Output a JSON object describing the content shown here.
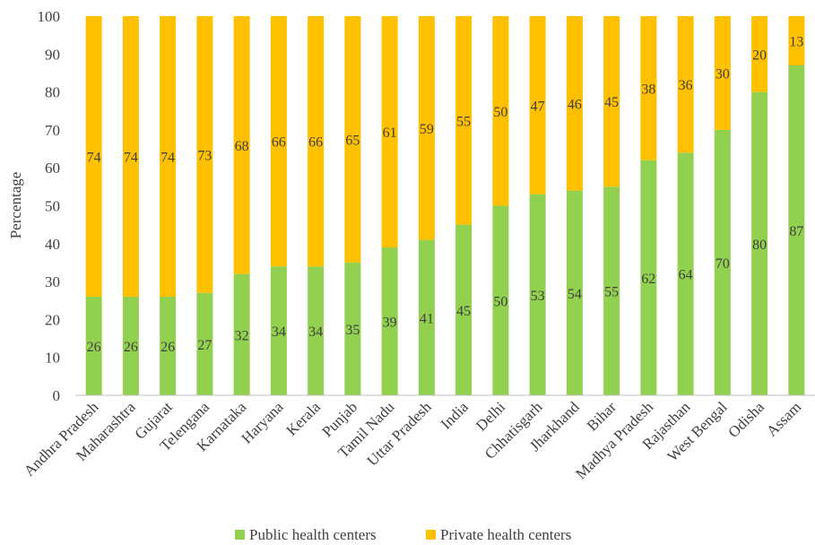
{
  "chart_data": {
    "type": "bar",
    "stacked": true,
    "title": "",
    "xlabel": "",
    "ylabel": "Percentage",
    "ylim": [
      0,
      100
    ],
    "yticks": [
      0,
      10,
      20,
      30,
      40,
      50,
      60,
      70,
      80,
      90,
      100
    ],
    "grid": false,
    "legend_position": "bottom",
    "categories": [
      "Andhra Pradesh",
      "Maharashtra",
      "Gujarat",
      "Telengana",
      "Karnataka",
      "Haryana",
      "Kerala",
      "Punjab",
      "Tamil Nadu",
      "Uttar Pradesh",
      "India",
      "Delhi",
      "Chhatisgarh",
      "Jharkhand",
      "Bihar",
      "Madhya Pradesh",
      "Rajasthan",
      "West Bengal",
      "Odisha",
      "Assam"
    ],
    "series": [
      {
        "name": "Public health centers",
        "color": "#92d050",
        "values": [
          26,
          26,
          26,
          27,
          32,
          34,
          34,
          35,
          39,
          41,
          45,
          50,
          53,
          54,
          55,
          62,
          64,
          70,
          80,
          87
        ]
      },
      {
        "name": "Private health centers",
        "color": "#ffc000",
        "values": [
          74,
          74,
          74,
          73,
          68,
          66,
          66,
          65,
          61,
          59,
          55,
          50,
          47,
          46,
          45,
          38,
          36,
          30,
          20,
          13
        ]
      }
    ]
  }
}
